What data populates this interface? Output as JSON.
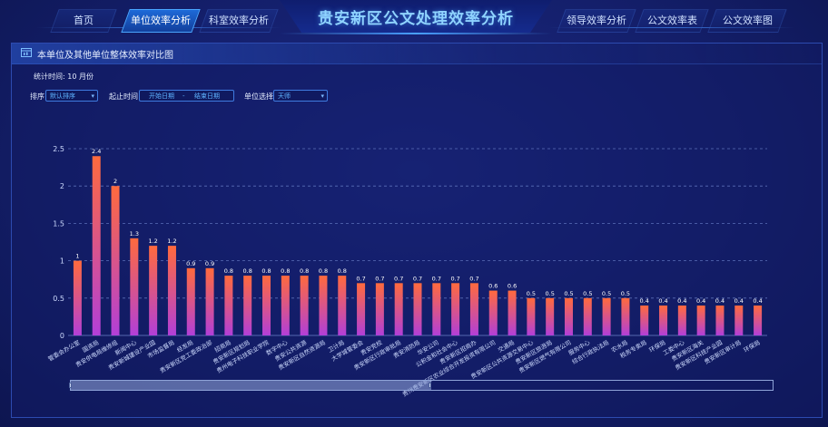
{
  "header": {
    "title": "贵安新区公文处理效率分析",
    "nav_left": [
      {
        "label": "首页",
        "active": false
      },
      {
        "label": "单位效率分析",
        "active": true
      },
      {
        "label": "科室效率分析",
        "active": false
      }
    ],
    "nav_right": [
      {
        "label": "领导效率分析",
        "active": false
      },
      {
        "label": "公文效率表",
        "active": false
      },
      {
        "label": "公文效率图",
        "active": false
      }
    ]
  },
  "panel": {
    "title": "本单位及其他单位整体效率对比图",
    "stat_label": "统计时间:",
    "stat_value": "10 月份",
    "filters": {
      "sort_label": "排序",
      "sort_value": "默认排序",
      "date_label": "起止时间",
      "date_start": "开始日期",
      "date_sep": "-",
      "date_end": "结束日期",
      "unit_label": "单位选择",
      "unit_value": "天师"
    }
  },
  "colors": {
    "bar_top": "#ff6a3d",
    "bar_bottom": "#b23fd8",
    "accent": "#4aa6ff",
    "axis_text": "#cfdcff"
  },
  "chart_data": {
    "type": "bar",
    "ylim": [
      0,
      2.5
    ],
    "yticks": [
      "0",
      "0.5",
      "1",
      "1.5",
      "2",
      "2.5"
    ],
    "grid": true,
    "categories": [
      "管委会办公室",
      "国资局",
      "贵安供电局维修组",
      "新闻中心",
      "贵安新城建设产业园",
      "市场监督局",
      "经发局",
      "贵安新区党工委政治部",
      "招商局",
      "贵安新区规划局",
      "贵州电子科技职业学院",
      "数字中心",
      "贵安公共资源",
      "贵安新区自然资源局",
      "卫计局",
      "大学城管委会",
      "贵安党校",
      "贵安新区行政审批局",
      "贵安消防局",
      "华安公司",
      "公积金和社会中心",
      "贵安新区招商办",
      "贵州贵安新区农业综合开发投资有限公司",
      "交通局",
      "贵安新区公共资源交易中心",
      "贵安新区旅游局",
      "贵安新区燃气有限公司",
      "服务中心",
      "综合行政执法局",
      "农水局",
      "税务专卖局",
      "环保局",
      "工委中心",
      "贵安新区海关",
      "贵安新区科技产业园",
      "贵安新区审计局",
      "环保局"
    ],
    "values": [
      1,
      2.4,
      2,
      1.3,
      1.2,
      1.2,
      0.9,
      0.9,
      0.8,
      0.8,
      0.8,
      0.8,
      0.8,
      0.8,
      0.8,
      0.7,
      0.7,
      0.7,
      0.7,
      0.7,
      0.7,
      0.7,
      0.6,
      0.6,
      0.5,
      0.5,
      0.5,
      0.5,
      0.5,
      0.5,
      0.4,
      0.4,
      0.4,
      0.4,
      0.4,
      0.4,
      0.4
    ],
    "data_labels": [
      "1",
      "2.4",
      "2",
      "1.3",
      "1.2",
      "1.2",
      "0.9",
      "0.9",
      "0.8",
      "0.8",
      "0.8",
      "0.8",
      "0.8",
      "0.8",
      "0.8",
      "0.7",
      "0.7",
      "0.7",
      "0.7",
      "0.7",
      "0.7",
      "0.7",
      "0.6",
      "0.6",
      "0.5",
      "0.5",
      "0.5",
      "0.5",
      "0.5",
      "0.5",
      "0.4",
      "0.4",
      "0.4",
      "0.4",
      "0.4",
      "0.4",
      "0.4"
    ]
  }
}
